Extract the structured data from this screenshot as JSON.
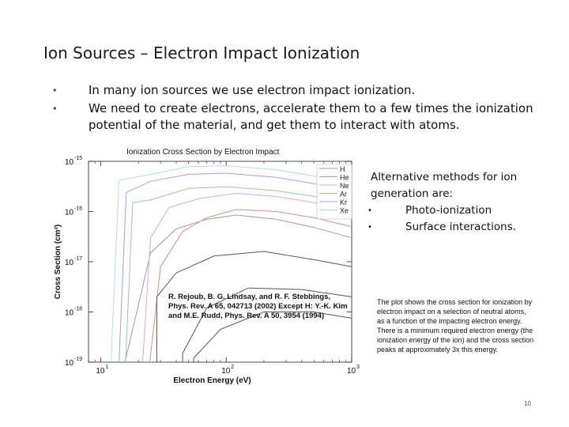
{
  "slide": {
    "title": "Ion Sources – Electron Impact Ionization",
    "bullets": [
      "In many ion sources we use electron impact ionization.",
      "We need to create electrons, accelerate them to a few times the ionization potential of the material, and get them to interact with atoms."
    ],
    "alternatives": {
      "heading": "Alternative methods for ion generation are:",
      "items": [
        "Photo-ionization",
        "Surface interactions."
      ]
    },
    "note_lines": [
      "The plot shows the cross section for ionization by electron impact on a selection of neutral atoms, as a function of the impacting electron energy.",
      "There is a minimum required electron energy (the ionization energy of the ion) and the cross section peaks at approximately 3x this energy."
    ],
    "citation": "R. Rejoub, B. G. Lindsay, and R. F. Stebbings, Phys. Rev. A 65, 042713 (2002) Except H: Y.-K. Kim and M.E. Rudd, Phys. Rev. A 50, 3954 (1994)",
    "page_number": "10"
  },
  "chart_data": {
    "type": "line",
    "title": "Ionization Cross Section by Electron Impact",
    "xlabel": "Electron Energy (eV)",
    "ylabel": "Cross Section (cm²)",
    "x_scale": "log",
    "y_scale": "log",
    "xlim": [
      8,
      1000
    ],
    "ylim": [
      1e-19,
      1e-15
    ],
    "x_ticks": [
      {
        "value": 10,
        "base": "10",
        "exp": "1"
      },
      {
        "value": 100,
        "base": "10",
        "exp": "2"
      },
      {
        "value": 1000,
        "base": "10",
        "exp": "3"
      }
    ],
    "y_ticks": [
      {
        "value": 1e-15,
        "base": "10",
        "exp": "-15"
      },
      {
        "value": 1e-16,
        "base": "10",
        "exp": "-16"
      },
      {
        "value": 1e-17,
        "base": "10",
        "exp": "-17"
      },
      {
        "value": 1e-18,
        "base": "10",
        "exp": "-18"
      },
      {
        "value": 1e-19,
        "base": "10",
        "exp": "-19"
      }
    ],
    "legend_position": "top-right",
    "grid": false,
    "series": [
      {
        "name": "H",
        "color": "#9b9b9b",
        "threshold": 15.6,
        "points": [
          [
            25,
            1.5e-17
          ],
          [
            40,
            4.5e-17
          ],
          [
            70,
            7e-17
          ],
          [
            120,
            8.5e-17
          ],
          [
            250,
            7e-17
          ],
          [
            500,
            4.8e-17
          ],
          [
            1000,
            3e-17
          ]
        ]
      },
      {
        "name": "He",
        "color": "#e08a8a",
        "threshold": 24.6,
        "points": [
          [
            30,
            8e-18
          ],
          [
            45,
            4e-17
          ],
          [
            70,
            7.5e-17
          ],
          [
            120,
            1.1e-16
          ],
          [
            250,
            1e-16
          ],
          [
            500,
            7.5e-17
          ],
          [
            1000,
            5e-17
          ]
        ]
      },
      {
        "name": "Ne",
        "color": "#e0a0e0",
        "threshold": 21.6,
        "points": [
          [
            25,
            3e-17
          ],
          [
            35,
            1.2e-16
          ],
          [
            60,
            1.8e-16
          ],
          [
            120,
            2.3e-16
          ],
          [
            250,
            2e-16
          ],
          [
            500,
            1.5e-16
          ],
          [
            1000,
            1e-16
          ]
        ]
      },
      {
        "name": "Ar",
        "color": "#90d090",
        "threshold": 15.8,
        "points": [
          [
            18,
            1.5e-16
          ],
          [
            25,
            1.7e-16
          ],
          [
            50,
            2.9e-16
          ],
          [
            100,
            3.1e-16
          ],
          [
            250,
            2.6e-16
          ],
          [
            500,
            2e-16
          ],
          [
            1000,
            1.5e-16
          ]
        ]
      },
      {
        "name": "Kr",
        "color": "#9aa4e6",
        "threshold": 14.0,
        "points": [
          [
            16,
            2.4e-16
          ],
          [
            25,
            4e-16
          ],
          [
            50,
            5.5e-16
          ],
          [
            100,
            5.8e-16
          ],
          [
            250,
            4.8e-16
          ],
          [
            500,
            3.6e-16
          ],
          [
            1000,
            2.7e-16
          ]
        ]
      },
      {
        "name": "Xe",
        "color": "#a8e0e8",
        "threshold": 12.1,
        "points": [
          [
            14,
            4.2e-16
          ],
          [
            25,
            5.5e-16
          ],
          [
            50,
            7.8e-16
          ],
          [
            100,
            8.2e-16
          ],
          [
            250,
            6.8e-16
          ],
          [
            500,
            5.1e-16
          ],
          [
            1000,
            3.9e-16
          ]
        ]
      },
      {
        "name": "",
        "color": "#555555",
        "threshold": 28,
        "points": [
          [
            28,
            2e-18
          ],
          [
            40,
            6e-18
          ],
          [
            80,
            1.3e-17
          ],
          [
            200,
            1.6e-17
          ],
          [
            500,
            1.1e-17
          ],
          [
            1000,
            8e-18
          ]
        ]
      },
      {
        "name": "",
        "color": "#555555",
        "threshold": 45,
        "points": [
          [
            45,
            1.5e-19
          ],
          [
            70,
            1.2e-18
          ],
          [
            150,
            3e-18
          ],
          [
            400,
            2.8e-18
          ],
          [
            1000,
            2e-18
          ]
        ]
      },
      {
        "name": "",
        "color": "#555555",
        "threshold": 55,
        "points": [
          [
            55,
            1.2e-19
          ],
          [
            90,
            4.5e-19
          ],
          [
            200,
            1e-18
          ],
          [
            500,
            1e-18
          ],
          [
            1000,
            7.5e-19
          ]
        ]
      }
    ]
  }
}
